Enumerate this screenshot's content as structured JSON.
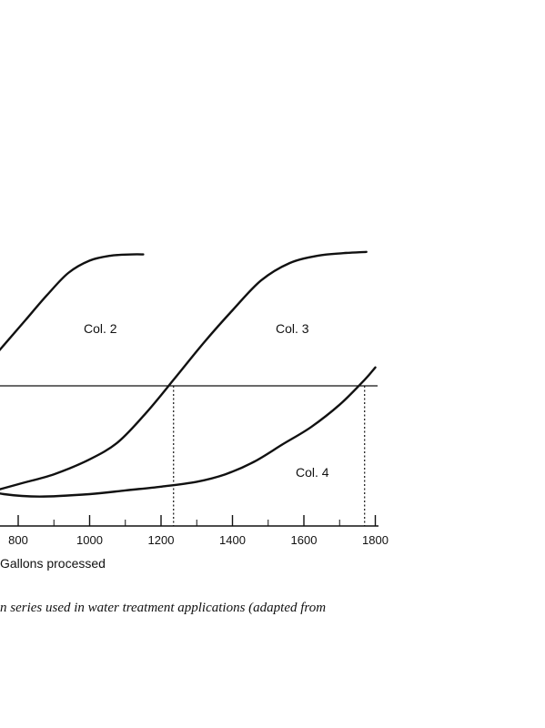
{
  "chart_data": {
    "type": "line",
    "xlabel": "Gallons processed",
    "ylabel": "",
    "x_ticks": [
      800,
      1000,
      1200,
      1400,
      1600,
      1800
    ],
    "x_tick_labels": [
      "800",
      "1000",
      "1200",
      "1400",
      "1600",
      "1800"
    ],
    "xlim": [
      700,
      1825
    ],
    "grid": false,
    "threshold_crossings": [
      1235,
      1770
    ],
    "series": [
      {
        "name": "Col. 2",
        "x": [
          700,
          760,
          820,
          880,
          940,
          1000,
          1060,
          1120,
          1150
        ],
        "y": [
          0.5,
          0.6,
          0.7,
          0.8,
          0.89,
          0.94,
          0.96,
          0.965,
          0.965
        ]
      },
      {
        "name": "Col. 3",
        "x": [
          700,
          800,
          900,
          1000,
          1080,
          1160,
          1235,
          1320,
          1400,
          1480,
          1560,
          1640,
          1710,
          1775
        ],
        "y": [
          0.0,
          0.04,
          0.08,
          0.14,
          0.21,
          0.33,
          0.46,
          0.61,
          0.74,
          0.86,
          0.93,
          0.96,
          0.97,
          0.975
        ]
      },
      {
        "name": "Col. 4",
        "x": [
          700,
          760,
          860,
          1000,
          1100,
          1200,
          1300,
          1380,
          1460,
          1540,
          1620,
          1700,
          1770,
          1800
        ],
        "y": [
          0.02,
          0.0,
          -0.01,
          0.0,
          0.015,
          0.03,
          0.05,
          0.08,
          0.13,
          0.2,
          0.27,
          0.36,
          0.46,
          0.51
        ]
      }
    ]
  },
  "caption": "n series used in water treatment applications (adapted from"
}
